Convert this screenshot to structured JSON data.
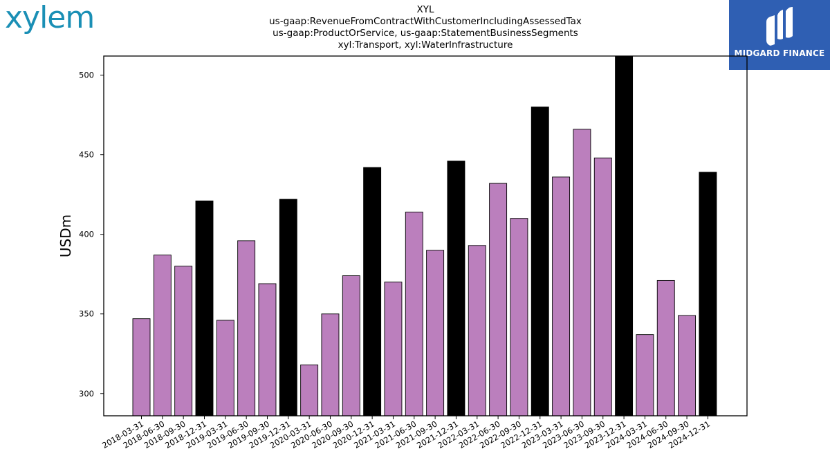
{
  "branding": {
    "company_logo_text": "xylem",
    "publisher_logo_text": "MIDGARD FINANCE",
    "colors": {
      "company": "#1a8fb5",
      "publisher_bg": "#2f5fb3"
    }
  },
  "header": {
    "title_lines": [
      "XYL",
      "us-gaap:RevenueFromContractWithCustomerIncludingAssessedTax",
      "us-gaap:ProductOrService, us-gaap:StatementBusinessSegments",
      "xyl:Transport, xyl:WaterInfrastructure"
    ]
  },
  "chart_data": {
    "type": "bar",
    "title": "XYL",
    "ylabel": "USDm",
    "xlabel": "",
    "ylim": [
      286,
      512
    ],
    "yticks": [
      300,
      350,
      400,
      450,
      500
    ],
    "grid": false,
    "legend": "none",
    "colors": {
      "quarter": "#bb7fbd",
      "year_end": "#000000",
      "edge": "#000000"
    },
    "categories": [
      "2018-03-31",
      "2018-06-30",
      "2018-09-30",
      "2018-12-31",
      "2019-03-31",
      "2019-06-30",
      "2019-09-30",
      "2019-12-31",
      "2020-03-31",
      "2020-06-30",
      "2020-09-30",
      "2020-12-31",
      "2021-03-31",
      "2021-06-30",
      "2021-09-30",
      "2021-12-31",
      "2022-03-31",
      "2022-06-30",
      "2022-09-30",
      "2022-12-31",
      "2023-03-31",
      "2023-06-30",
      "2023-09-30",
      "2023-12-31",
      "2024-03-31",
      "2024-06-30",
      "2024-09-30",
      "2024-12-31"
    ],
    "values": [
      347,
      387,
      380,
      421,
      346,
      396,
      369,
      422,
      318,
      350,
      374,
      442,
      370,
      414,
      390,
      446,
      393,
      432,
      410,
      480,
      436,
      466,
      448,
      512,
      337,
      371,
      349,
      439
    ]
  }
}
